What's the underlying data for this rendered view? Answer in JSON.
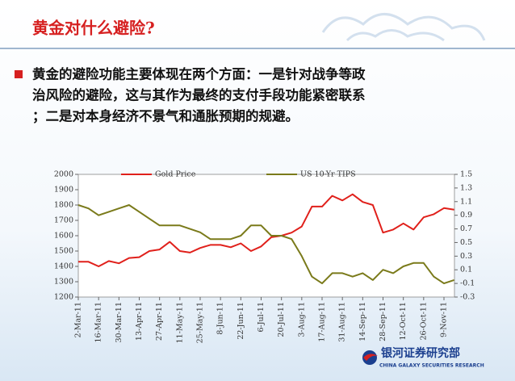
{
  "title": "黄金对什么避险?",
  "bullet_lines": [
    "黄金的避险功能主要体现在两个方面：一是针对战争等政",
    "治风险的避险，这与其作为最终的支付手段功能紧密联系",
    "；二是对本身经济不景气和通胀预期的规避。"
  ],
  "chart_data": {
    "type": "line",
    "categories": [
      "2-Mar-11",
      null,
      "16-Mar-11",
      null,
      "30-Mar-11",
      null,
      "13-Apr-11",
      null,
      "27-Apr-11",
      null,
      "11-May-11",
      null,
      "25-May-11",
      null,
      "8-Jun-11",
      null,
      "22-Jun-11",
      null,
      "6-Jul-11",
      null,
      "20-Jul-11",
      null,
      "3-Aug-11",
      null,
      "17-Aug-11",
      null,
      "31-Aug-11",
      null,
      "14-Sep-11",
      null,
      "28-Sep-11",
      null,
      "12-Oct-11",
      null,
      "26-Oct-11",
      null,
      "9-Nov-11",
      null
    ],
    "series": [
      {
        "name": "Gold Price",
        "color": "#e0201b",
        "values": [
          1430,
          1430,
          1400,
          1435,
          1420,
          1455,
          1460,
          1500,
          1510,
          1560,
          1500,
          1490,
          1520,
          1540,
          1540,
          1525,
          1550,
          1500,
          1530,
          1590,
          1600,
          1620,
          1660,
          1790,
          1790,
          1860,
          1830,
          1870,
          1820,
          1800,
          1620,
          1640,
          1680,
          1640,
          1720,
          1740,
          1780,
          1770
        ]
      },
      {
        "name": "US 10-Yr TIPS",
        "color": "#7a7a1a",
        "axis": "y2",
        "values": [
          1.05,
          1.0,
          0.9,
          0.95,
          1.0,
          1.05,
          0.95,
          0.85,
          0.75,
          0.75,
          0.75,
          0.7,
          0.65,
          0.55,
          0.55,
          0.55,
          0.6,
          0.75,
          0.75,
          0.6,
          0.6,
          0.55,
          0.3,
          0.0,
          -0.1,
          0.05,
          0.05,
          0.0,
          0.05,
          -0.05,
          0.1,
          0.05,
          0.15,
          0.2,
          0.2,
          0.0,
          -0.1,
          -0.05
        ]
      }
    ],
    "ylim": [
      1200,
      2000
    ],
    "yticks": [
      1200,
      1300,
      1400,
      1500,
      1600,
      1700,
      1800,
      1900,
      2000
    ],
    "y2lim": [
      -0.3,
      1.5
    ],
    "y2ticks": [
      -0.3,
      -0.1,
      0.1,
      0.3,
      0.5,
      0.7,
      0.9,
      1.1,
      1.3,
      1.5
    ],
    "legend": "top"
  },
  "footer": {
    "logo_cn": "银河证券研究部",
    "logo_en": "CHINA GALAXY SECURITIES RESEARCH"
  }
}
